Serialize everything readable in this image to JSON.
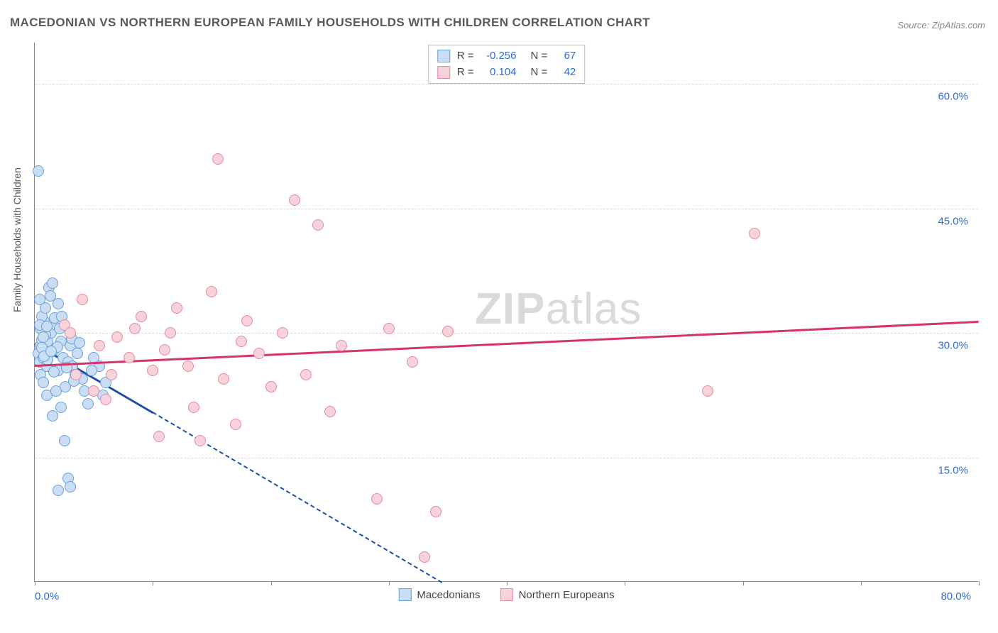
{
  "title": "MACEDONIAN VS NORTHERN EUROPEAN FAMILY HOUSEHOLDS WITH CHILDREN CORRELATION CHART",
  "source": "Source: ZipAtlas.com",
  "y_axis_title": "Family Households with Children",
  "watermark_a": "ZIP",
  "watermark_b": "atlas",
  "chart": {
    "type": "scatter",
    "background_color": "#ffffff",
    "grid_color": "#d8d8d8",
    "axis_color": "#888888",
    "text_color": "#555555",
    "tick_label_color": "#2f6bd6",
    "title_fontsize": 17,
    "label_fontsize": 14,
    "tick_fontsize": 15,
    "xlim": [
      0,
      80
    ],
    "ylim": [
      0,
      65
    ],
    "x_ticks": [
      0,
      10,
      20,
      30,
      40,
      50,
      60,
      70,
      80
    ],
    "y_gridlines": [
      15,
      30,
      45,
      60
    ],
    "x_min_label": "0.0%",
    "x_max_label": "80.0%",
    "y_tick_labels": {
      "15": "15.0%",
      "30": "30.0%",
      "45": "45.0%",
      "60": "60.0%"
    },
    "point_radius": 8,
    "point_border_width": 1.5,
    "series": [
      {
        "name": "Macedonians",
        "fill": "#c9ddf3",
        "stroke": "#6aa0de",
        "r_value": "-0.256",
        "n_value": "67",
        "trend": {
          "color": "#1b4fa8",
          "width": 2.5,
          "solid": {
            "x1": 0,
            "y1": 28.8,
            "x2": 10,
            "y2": 20.5
          },
          "dashed": {
            "x1": 10,
            "y1": 20.5,
            "x2": 34.5,
            "y2": 0
          }
        },
        "points": [
          [
            0.3,
            27.5
          ],
          [
            0.5,
            28.5
          ],
          [
            0.6,
            29.2
          ],
          [
            0.8,
            30.1
          ],
          [
            0.4,
            26.5
          ],
          [
            0.7,
            27.0
          ],
          [
            0.9,
            28.0
          ],
          [
            1.1,
            29.0
          ],
          [
            0.5,
            25.0
          ],
          [
            0.8,
            31.5
          ],
          [
            1.0,
            26.0
          ],
          [
            1.2,
            27.5
          ],
          [
            0.6,
            32.0
          ],
          [
            1.4,
            30.0
          ],
          [
            1.6,
            28.0
          ],
          [
            0.9,
            33.0
          ],
          [
            1.8,
            31.0
          ],
          [
            0.4,
            34.0
          ],
          [
            2.0,
            25.5
          ],
          [
            1.2,
            35.5
          ],
          [
            2.2,
            29.0
          ],
          [
            0.7,
            24.0
          ],
          [
            2.4,
            27.0
          ],
          [
            1.5,
            36.0
          ],
          [
            0.3,
            49.5
          ],
          [
            2.6,
            23.5
          ],
          [
            1.0,
            22.5
          ],
          [
            2.8,
            26.5
          ],
          [
            3.0,
            28.5
          ],
          [
            1.8,
            23.0
          ],
          [
            3.2,
            26.0
          ],
          [
            2.0,
            33.5
          ],
          [
            3.4,
            25.0
          ],
          [
            2.2,
            21.0
          ],
          [
            3.6,
            27.5
          ],
          [
            4.0,
            24.5
          ],
          [
            2.5,
            17.0
          ],
          [
            4.2,
            23.0
          ],
          [
            4.5,
            21.5
          ],
          [
            1.5,
            20.0
          ],
          [
            5.0,
            27.0
          ],
          [
            2.8,
            12.5
          ],
          [
            5.5,
            26.0
          ],
          [
            3.0,
            11.5
          ],
          [
            6.0,
            24.0
          ],
          [
            2.0,
            11.0
          ],
          [
            1.3,
            34.5
          ],
          [
            0.9,
            29.8
          ],
          [
            1.7,
            31.8
          ],
          [
            2.1,
            30.5
          ],
          [
            0.5,
            30.5
          ],
          [
            1.1,
            26.8
          ],
          [
            1.9,
            28.3
          ],
          [
            0.6,
            28.2
          ],
          [
            2.3,
            32.0
          ],
          [
            0.8,
            27.2
          ],
          [
            1.4,
            27.8
          ],
          [
            3.1,
            29.3
          ],
          [
            2.7,
            25.8
          ],
          [
            1.6,
            25.3
          ],
          [
            3.3,
            24.2
          ],
          [
            0.4,
            31.0
          ],
          [
            1.0,
            30.8
          ],
          [
            4.8,
            25.5
          ],
          [
            0.7,
            29.5
          ],
          [
            3.8,
            28.8
          ],
          [
            5.8,
            22.5
          ]
        ]
      },
      {
        "name": "Northern Europeans",
        "fill": "#f6d2da",
        "stroke": "#e38aa1",
        "r_value": "0.104",
        "n_value": "42",
        "trend": {
          "color": "#d6336c",
          "width": 2.5,
          "solid": {
            "x1": 0,
            "y1": 26.2,
            "x2": 80,
            "y2": 31.5
          }
        },
        "points": [
          [
            2.5,
            31.0
          ],
          [
            3.5,
            25.0
          ],
          [
            5.0,
            23.0
          ],
          [
            5.5,
            28.5
          ],
          [
            6.0,
            22.0
          ],
          [
            7.0,
            29.5
          ],
          [
            8.0,
            27.0
          ],
          [
            8.5,
            30.5
          ],
          [
            9.0,
            32.0
          ],
          [
            10.0,
            25.5
          ],
          [
            11.0,
            28.0
          ],
          [
            12.0,
            33.0
          ],
          [
            13.0,
            26.0
          ],
          [
            14.0,
            17.0
          ],
          [
            15.0,
            35.0
          ],
          [
            15.5,
            51.0
          ],
          [
            16.0,
            24.5
          ],
          [
            17.0,
            19.0
          ],
          [
            18.0,
            31.5
          ],
          [
            19.0,
            27.5
          ],
          [
            20.0,
            23.5
          ],
          [
            21.0,
            30.0
          ],
          [
            22.0,
            46.0
          ],
          [
            23.0,
            25.0
          ],
          [
            24.0,
            43.0
          ],
          [
            25.0,
            20.5
          ],
          [
            26.0,
            28.5
          ],
          [
            29.0,
            10.0
          ],
          [
            30.0,
            30.5
          ],
          [
            32.0,
            26.5
          ],
          [
            34.0,
            8.5
          ],
          [
            35.0,
            30.2
          ],
          [
            57.0,
            23.0
          ],
          [
            61.0,
            42.0
          ],
          [
            10.5,
            17.5
          ],
          [
            13.5,
            21.0
          ],
          [
            4.0,
            34.0
          ],
          [
            6.5,
            25.0
          ],
          [
            11.5,
            30.0
          ],
          [
            33.0,
            3.0
          ],
          [
            17.5,
            29.0
          ],
          [
            3.0,
            30.0
          ]
        ]
      }
    ],
    "legend_top": {
      "r_label": "R =",
      "n_label": "N ="
    },
    "legend_bottom": {
      "items": [
        "Macedonians",
        "Northern Europeans"
      ]
    }
  }
}
